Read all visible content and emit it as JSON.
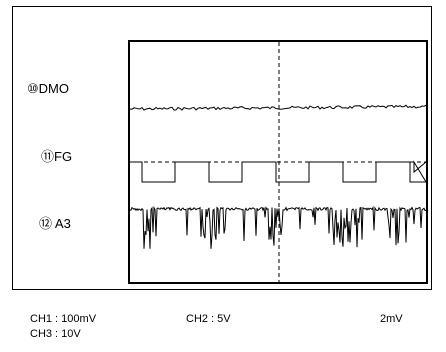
{
  "labels": {
    "dmo": "⑩DMO",
    "fg": "⑪FG",
    "a3": "⑫ A3"
  },
  "footer": {
    "ch1": "CH1 : 100mV",
    "ch2": "CH2 : 5V",
    "ch3": "CH3 : 10V",
    "timebase": "2mV"
  },
  "colors": {
    "trace": "#000000"
  }
}
